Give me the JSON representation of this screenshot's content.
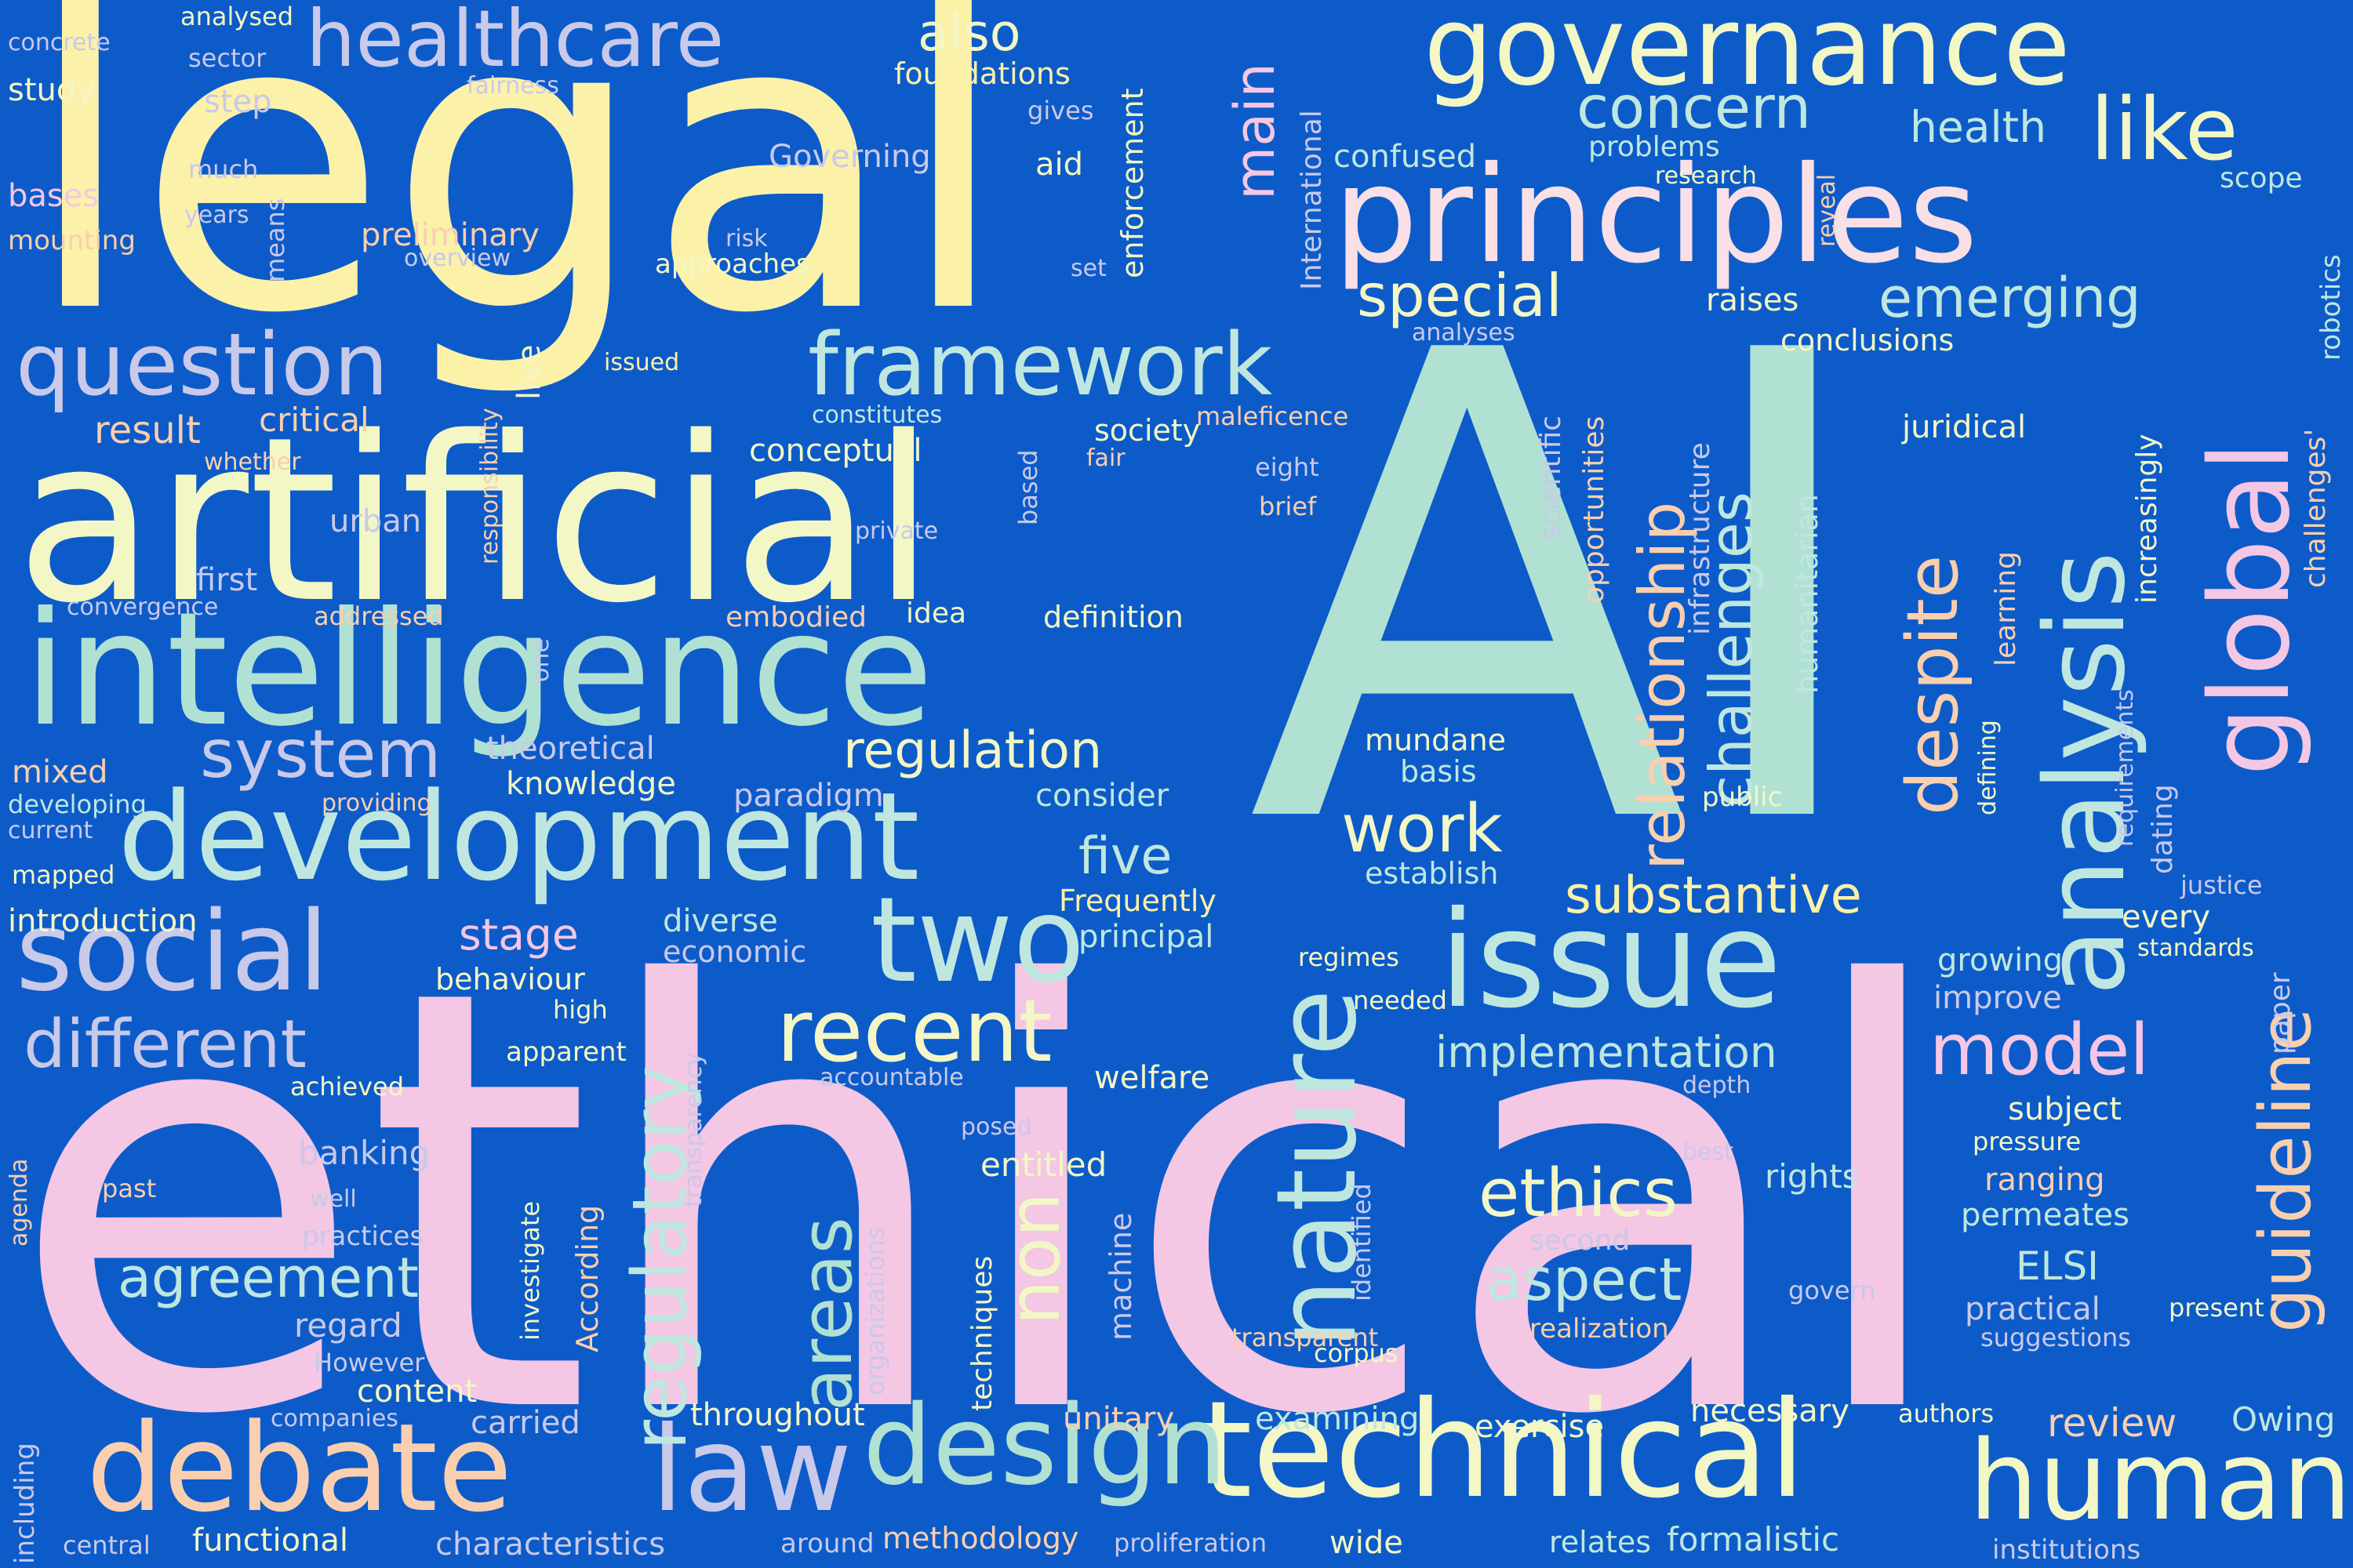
{
  "background_color": "#0d5bc9",
  "palette": {
    "yellow": "#fbf1a9",
    "cream": "#f3f7c6",
    "mint": "#b1e1d2",
    "pink": "#f4c7e4",
    "peach": "#f9cfaf",
    "lavender": "#c9c9ea",
    "lime": "#dcf2b4",
    "aqua": "#bfe7e0"
  },
  "words": [
    {
      "text": "legal",
      "color": "#fbf1a9"
    },
    {
      "text": "AI",
      "color": "#b1e1d2"
    },
    {
      "text": "ethical",
      "color": "#f4c7e4"
    },
    {
      "text": "artificial",
      "color": "#f3f7c6"
    },
    {
      "text": "intelligence",
      "color": "#b1e1d2"
    },
    {
      "text": "development",
      "color": "#bfe7e0"
    },
    {
      "text": "principles",
      "color": "#f9dfe6"
    },
    {
      "text": "governance",
      "color": "#f3f7c6"
    },
    {
      "text": "issue",
      "color": "#bfe7e0"
    },
    {
      "text": "technical",
      "color": "#f3f7c6"
    },
    {
      "text": "debate",
      "color": "#f9cfaf"
    },
    {
      "text": "law",
      "color": "#c9c9ea"
    },
    {
      "text": "design",
      "color": "#b1e1d2"
    },
    {
      "text": "human",
      "color": "#f3f7c6"
    },
    {
      "text": "two",
      "color": "#bfe7e0"
    },
    {
      "text": "social",
      "color": "#c9c9ea"
    },
    {
      "text": "question",
      "color": "#c9c9ea"
    },
    {
      "text": "framework",
      "color": "#bfe7e0"
    },
    {
      "text": "healthcare",
      "color": "#c9c9ea"
    },
    {
      "text": "recent",
      "color": "#f3f7c6"
    },
    {
      "text": "regulatory",
      "color": "#bfe7e0"
    },
    {
      "text": "nature",
      "color": "#bfe7e0"
    },
    {
      "text": "areas",
      "color": "#b1e1d2"
    },
    {
      "text": "non",
      "color": "#f3f7c6"
    },
    {
      "text": "analysis",
      "color": "#bfe7e0"
    },
    {
      "text": "global",
      "color": "#f4c7e4"
    },
    {
      "text": "guideline",
      "color": "#f9cfaf"
    },
    {
      "text": "relationship",
      "color": "#f9cfaf"
    },
    {
      "text": "despite",
      "color": "#f9cfaf"
    },
    {
      "text": "challenges",
      "color": "#bfe7e0"
    },
    {
      "text": "concern",
      "color": "#bfe7e0"
    },
    {
      "text": "like",
      "color": "#f3f7c6"
    },
    {
      "text": "special",
      "color": "#f3f7c6"
    },
    {
      "text": "emerging",
      "color": "#bfe7e0"
    },
    {
      "text": "system",
      "color": "#c9c9ea"
    },
    {
      "text": "different",
      "color": "#c9c9ea"
    },
    {
      "text": "agreement",
      "color": "#bfe7e0"
    },
    {
      "text": "work",
      "color": "#f3f7c6"
    },
    {
      "text": "regulation",
      "color": "#f3f7c6"
    },
    {
      "text": "substantive",
      "color": "#fbf1a9"
    },
    {
      "text": "model",
      "color": "#f4c7e4"
    },
    {
      "text": "ethics",
      "color": "#f3f7c6"
    },
    {
      "text": "aspect",
      "color": "#bfe7e0"
    },
    {
      "text": "implementation",
      "color": "#bfe7e0"
    },
    {
      "text": "five",
      "color": "#bfe7e0"
    },
    {
      "text": "main",
      "color": "#f4c7e4"
    },
    {
      "text": "also",
      "color": "#f3f7c6"
    },
    {
      "text": "health",
      "color": "#bfe7e0"
    },
    {
      "text": "analysed",
      "color": "#f3f7c6"
    },
    {
      "text": "concrete",
      "color": "#c9c9ea"
    },
    {
      "text": "study",
      "color": "#f3f7c6"
    },
    {
      "text": "sector",
      "color": "#c9c9ea"
    },
    {
      "text": "step",
      "color": "#c9c9ea"
    },
    {
      "text": "fairness",
      "color": "#c9c9ea"
    },
    {
      "text": "foundations",
      "color": "#fbf1a9"
    },
    {
      "text": "gives",
      "color": "#c9c9ea"
    },
    {
      "text": "aid",
      "color": "#f3f7c6"
    },
    {
      "text": "Governing",
      "color": "#c9c9ea"
    },
    {
      "text": "much",
      "color": "#c9c9ea"
    },
    {
      "text": "years",
      "color": "#c9c9ea"
    },
    {
      "text": "bases",
      "color": "#f4c7e4"
    },
    {
      "text": "mounting",
      "color": "#f9cfaf"
    },
    {
      "text": "preliminary",
      "color": "#f9cfaf"
    },
    {
      "text": "overview",
      "color": "#c9c9ea"
    },
    {
      "text": "risk",
      "color": "#c9c9ea"
    },
    {
      "text": "approaches",
      "color": "#f3f7c6"
    },
    {
      "text": "set",
      "color": "#c9c9ea"
    },
    {
      "text": "means",
      "color": "#c9c9ea"
    },
    {
      "text": "enforcement",
      "color": "#f3f7c6"
    },
    {
      "text": "International",
      "color": "#c9c9ea"
    },
    {
      "text": "confused",
      "color": "#bfe7e0"
    },
    {
      "text": "problems",
      "color": "#bfe7e0"
    },
    {
      "text": "research",
      "color": "#f3f7c6"
    },
    {
      "text": "reveal",
      "color": "#f9cfaf"
    },
    {
      "text": "scope",
      "color": "#bfe7e0"
    },
    {
      "text": "robotics",
      "color": "#bfe7e0"
    },
    {
      "text": "challenges'",
      "color": "#f9cfaf"
    },
    {
      "text": "raises",
      "color": "#f3f7c6"
    },
    {
      "text": "conclusions",
      "color": "#f3f7c6"
    },
    {
      "text": "juridical",
      "color": "#f3f7c6"
    },
    {
      "text": "analyses",
      "color": "#c9c9ea"
    },
    {
      "text": "issued",
      "color": "#fbf1a9"
    },
    {
      "text": "responsibility",
      "color": "#f9cfaf"
    },
    {
      "text": "live",
      "color": "#f3f7c6"
    },
    {
      "text": "result",
      "color": "#f9cfaf"
    },
    {
      "text": "critical",
      "color": "#f9cfaf"
    },
    {
      "text": "whether",
      "color": "#f9cfaf"
    },
    {
      "text": "constitutes",
      "color": "#bfe7e0"
    },
    {
      "text": "maleficence",
      "color": "#f9cfaf"
    },
    {
      "text": "society",
      "color": "#f3f7c6"
    },
    {
      "text": "conceptual",
      "color": "#f3f7c6"
    },
    {
      "text": "fair",
      "color": "#f9cfaf"
    },
    {
      "text": "eight",
      "color": "#c9c9ea"
    },
    {
      "text": "brief",
      "color": "#f9cfaf"
    },
    {
      "text": "based",
      "color": "#c9c9ea"
    },
    {
      "text": "urban",
      "color": "#c9c9ea"
    },
    {
      "text": "private",
      "color": "#c9c9ea"
    },
    {
      "text": "first",
      "color": "#c9c9ea"
    },
    {
      "text": "convergence",
      "color": "#c9c9ea"
    },
    {
      "text": "addressed",
      "color": "#f9cfaf"
    },
    {
      "text": "embodied",
      "color": "#f9cfaf"
    },
    {
      "text": "idea",
      "color": "#f3f7c6"
    },
    {
      "text": "definition",
      "color": "#f3f7c6"
    },
    {
      "text": "one",
      "color": "#c9c9ea"
    },
    {
      "text": "scientific",
      "color": "#c9c9ea"
    },
    {
      "text": "opportunities",
      "color": "#f9cfaf"
    },
    {
      "text": "infrastructure",
      "color": "#c9c9ea"
    },
    {
      "text": "humanitarian",
      "color": "#bfe7e0"
    },
    {
      "text": "learning",
      "color": "#f9cfaf"
    },
    {
      "text": "increasingly",
      "color": "#f3f7c6"
    },
    {
      "text": "defining",
      "color": "#f3f7c6"
    },
    {
      "text": "requirements",
      "color": "#c9c9ea"
    },
    {
      "text": "dating",
      "color": "#c9c9ea"
    },
    {
      "text": "theoretical",
      "color": "#c9c9ea"
    },
    {
      "text": "knowledge",
      "color": "#f3f7c6"
    },
    {
      "text": "paradigm",
      "color": "#c9c9ea"
    },
    {
      "text": "consider",
      "color": "#bfe7e0"
    },
    {
      "text": "mundane",
      "color": "#f3f7c6"
    },
    {
      "text": "basis",
      "color": "#bfe7e0"
    },
    {
      "text": "public",
      "color": "#f3f7c6"
    },
    {
      "text": "mixed",
      "color": "#f9cfaf"
    },
    {
      "text": "developing",
      "color": "#bfe7e0"
    },
    {
      "text": "current",
      "color": "#c9c9ea"
    },
    {
      "text": "providing",
      "color": "#f9cfaf"
    },
    {
      "text": "establish",
      "color": "#bfe7e0"
    },
    {
      "text": "mapped",
      "color": "#f3f7c6"
    },
    {
      "text": "introduction",
      "color": "#f3f7c6"
    },
    {
      "text": "diverse",
      "color": "#bfe7e0"
    },
    {
      "text": "economic",
      "color": "#c9c9ea"
    },
    {
      "text": "Frequently",
      "color": "#fbf1a9"
    },
    {
      "text": "principal",
      "color": "#bfe7e0"
    },
    {
      "text": "stage",
      "color": "#f4c7e4"
    },
    {
      "text": "regimes",
      "color": "#f3f7c6"
    },
    {
      "text": "every",
      "color": "#f3f7c6"
    },
    {
      "text": "justice",
      "color": "#c9c9ea"
    },
    {
      "text": "standards",
      "color": "#f3f7c6"
    },
    {
      "text": "growing",
      "color": "#bfe7e0"
    },
    {
      "text": "improve",
      "color": "#c9c9ea"
    },
    {
      "text": "paper",
      "color": "#c9c9ea"
    },
    {
      "text": "behaviour",
      "color": "#f3f7c6"
    },
    {
      "text": "high",
      "color": "#f3f7c6"
    },
    {
      "text": "needed",
      "color": "#f3f7c6"
    },
    {
      "text": "achieved",
      "color": "#f3f7c6"
    },
    {
      "text": "apparent",
      "color": "#f3f7c6"
    },
    {
      "text": "accountable",
      "color": "#c9c9ea"
    },
    {
      "text": "transparency",
      "color": "#c9c9ea"
    },
    {
      "text": "depth",
      "color": "#c9c9ea"
    },
    {
      "text": "welfare",
      "color": "#f3f7c6"
    },
    {
      "text": "posed",
      "color": "#c9c9ea"
    },
    {
      "text": "subject",
      "color": "#f3f7c6"
    },
    {
      "text": "pressure",
      "color": "#f3f7c6"
    },
    {
      "text": "best",
      "color": "#c9c9ea"
    },
    {
      "text": "banking",
      "color": "#c9c9ea"
    },
    {
      "text": "agenda",
      "color": "#f9cfaf"
    },
    {
      "text": "past",
      "color": "#f9cfaf"
    },
    {
      "text": "well",
      "color": "#c9c9ea"
    },
    {
      "text": "practices",
      "color": "#c9c9ea"
    },
    {
      "text": "investigate",
      "color": "#f3f7c6"
    },
    {
      "text": "According",
      "color": "#f9cfaf"
    },
    {
      "text": "organizations",
      "color": "#c9c9ea"
    },
    {
      "text": "techniques",
      "color": "#f3f7c6"
    },
    {
      "text": "entitled",
      "color": "#f3f7c6"
    },
    {
      "text": "machine",
      "color": "#c9c9ea"
    },
    {
      "text": "identified",
      "color": "#c9c9ea"
    },
    {
      "text": "rights",
      "color": "#bfe7e0"
    },
    {
      "text": "ranging",
      "color": "#f9cfaf"
    },
    {
      "text": "permeates",
      "color": "#bfe7e0"
    },
    {
      "text": "second",
      "color": "#c9c9ea"
    },
    {
      "text": "ELSI",
      "color": "#bfe7e0"
    },
    {
      "text": "practical",
      "color": "#c9c9ea"
    },
    {
      "text": "suggestions",
      "color": "#c9c9ea"
    },
    {
      "text": "govern",
      "color": "#c9c9ea"
    },
    {
      "text": "present",
      "color": "#f3f7c6"
    },
    {
      "text": "regard",
      "color": "#c9c9ea"
    },
    {
      "text": "However",
      "color": "#c9c9ea"
    },
    {
      "text": "content",
      "color": "#f3f7c6"
    },
    {
      "text": "companies",
      "color": "#c9c9ea"
    },
    {
      "text": "realization",
      "color": "#f9cfaf"
    },
    {
      "text": "transparent",
      "color": "#f9cfaf"
    },
    {
      "text": "corpus",
      "color": "#f3f7c6"
    },
    {
      "text": "carried",
      "color": "#c9c9ea"
    },
    {
      "text": "throughout",
      "color": "#f3f7c6"
    },
    {
      "text": "unitary",
      "color": "#f9cfaf"
    },
    {
      "text": "examining",
      "color": "#bfe7e0"
    },
    {
      "text": "exercise",
      "color": "#f3f7c6"
    },
    {
      "text": "necessary",
      "color": "#f3f7c6"
    },
    {
      "text": "authors",
      "color": "#f3f7c6"
    },
    {
      "text": "review",
      "color": "#f9cfaf"
    },
    {
      "text": "Owing",
      "color": "#bfe7e0"
    },
    {
      "text": "including",
      "color": "#c9c9ea"
    },
    {
      "text": "central",
      "color": "#c9c9ea"
    },
    {
      "text": "functional",
      "color": "#f3f7c6"
    },
    {
      "text": "characteristics",
      "color": "#c9c9ea"
    },
    {
      "text": "around",
      "color": "#c9c9ea"
    },
    {
      "text": "methodology",
      "color": "#f9cfaf"
    },
    {
      "text": "proliferation",
      "color": "#c9c9ea"
    },
    {
      "text": "wide",
      "color": "#f3f7c6"
    },
    {
      "text": "relates",
      "color": "#bfe7e0"
    },
    {
      "text": "formalistic",
      "color": "#bfe7e0"
    },
    {
      "text": "institutions",
      "color": "#c9c9ea"
    }
  ]
}
